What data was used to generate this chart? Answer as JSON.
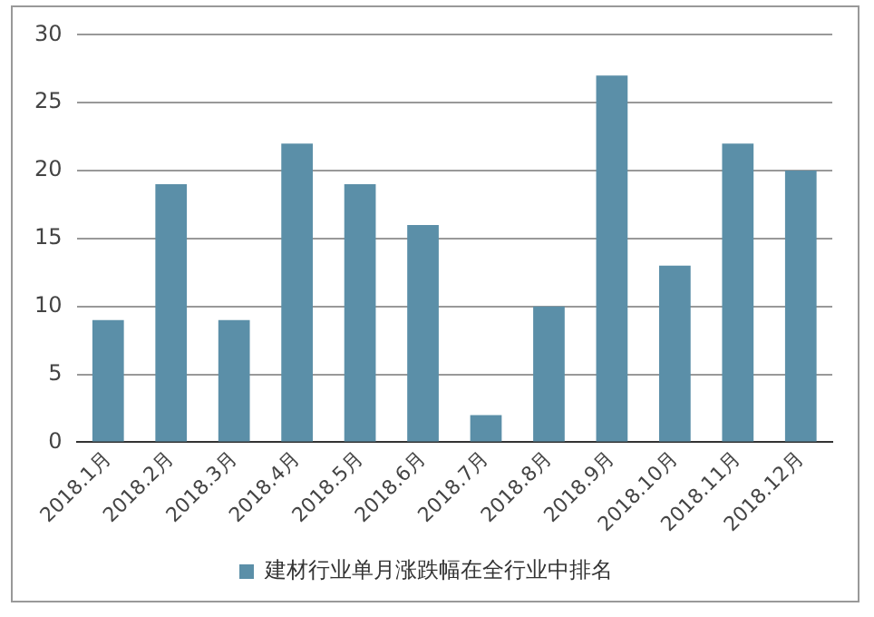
{
  "chart_data": {
    "type": "bar",
    "categories": [
      "2018.1月",
      "2018.2月",
      "2018.3月",
      "2018.4月",
      "2018.5月",
      "2018.6月",
      "2018.7月",
      "2018.8月",
      "2018.9月",
      "2018.10月",
      "2018.11月",
      "2018.12月"
    ],
    "series": [
      {
        "name": "建材行业单月涨跌幅在全行业中排名",
        "color": "#5b8fa8",
        "values": [
          9,
          19,
          9,
          22,
          19,
          16,
          2,
          10,
          27,
          13,
          22,
          20
        ]
      }
    ],
    "ylim": [
      0,
      30
    ],
    "yticks": [
      0,
      5,
      10,
      15,
      20,
      25,
      30
    ],
    "grid": "y",
    "legend": "bottom"
  }
}
